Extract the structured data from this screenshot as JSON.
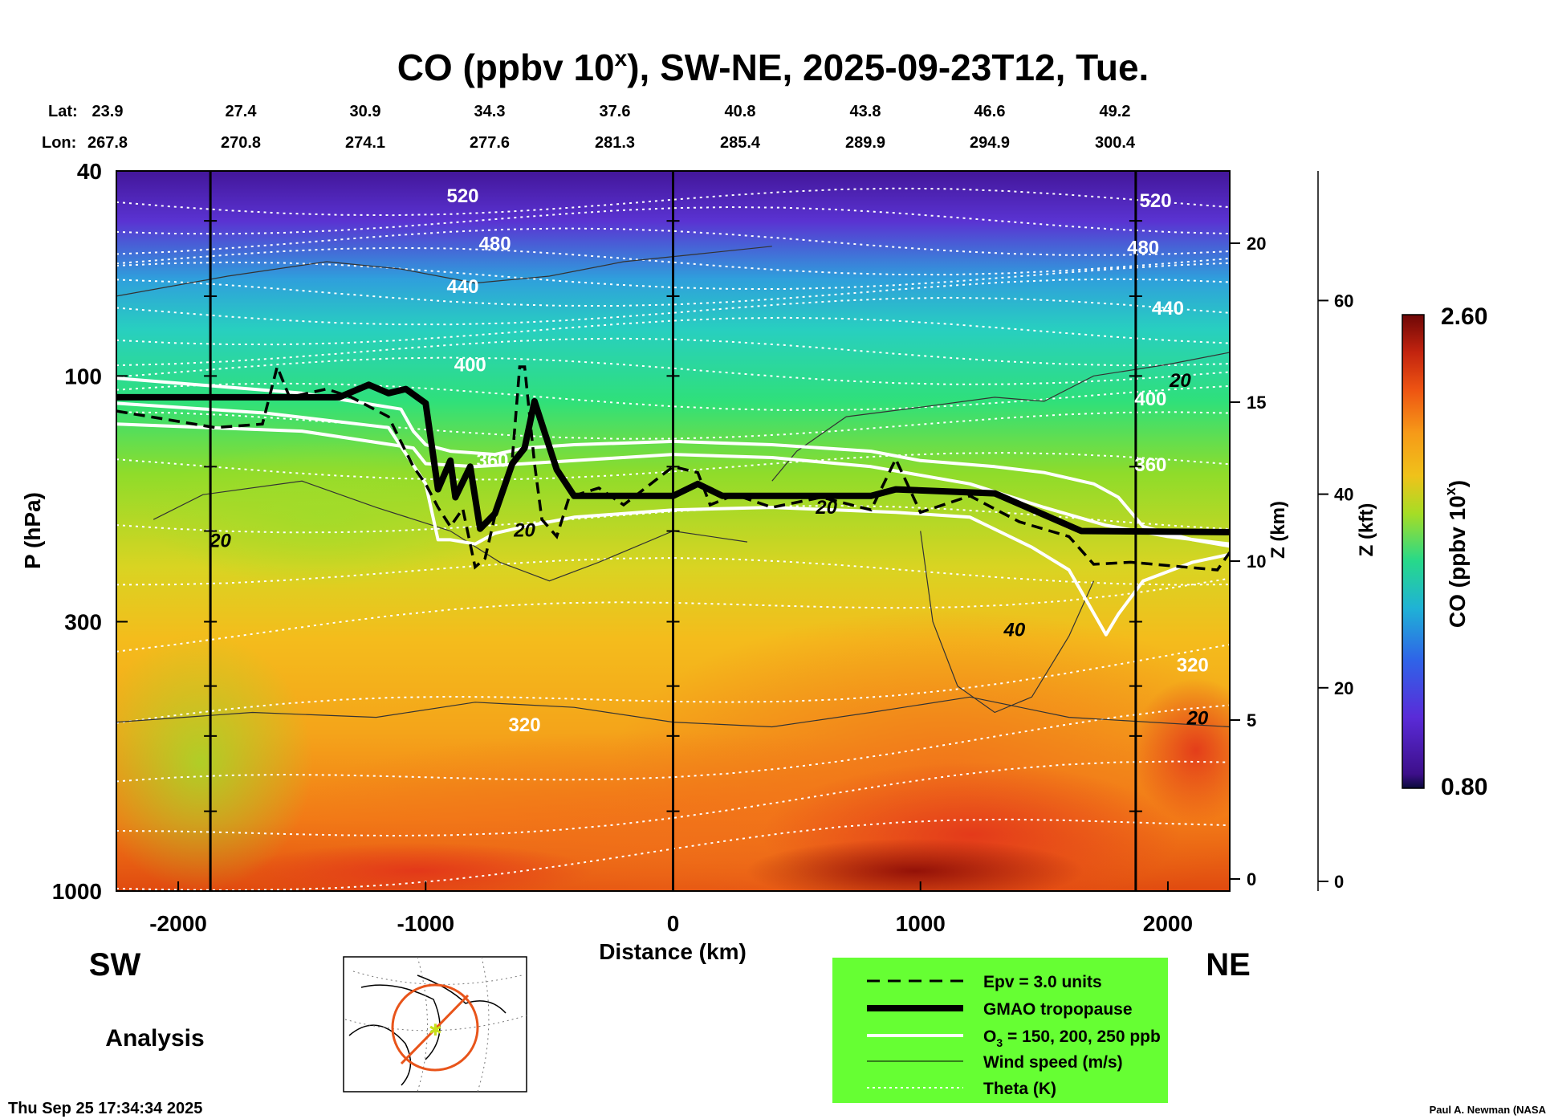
{
  "chart_data": {
    "type": "heatmap",
    "title": "CO (ppbv 10",
    "title_sup": "x",
    "title_rest": "), SW-NE, 2025-09-23T12, Tue.",
    "xlabel": "Distance (km)",
    "ylabel": "P (hPa)",
    "y2label": "Z (km)",
    "y3label": "Z (kft)",
    "xlim": [
      -2250,
      2250
    ],
    "ylim_hpa": [
      1000,
      40
    ],
    "x_ticks": [
      -2000,
      -1000,
      0,
      1000,
      2000
    ],
    "x_tick_labels": [
      "-2000",
      "-1000",
      "0",
      "1000",
      "2000"
    ],
    "p_ticks": [
      40,
      100,
      300,
      1000
    ],
    "p_tick_labels": [
      "40",
      "100",
      "300",
      "1000"
    ],
    "z_km_ticks": [
      0,
      5,
      10,
      15,
      20
    ],
    "z_km_labels": [
      "0",
      "5",
      "10",
      "15",
      "20"
    ],
    "z_kft_ticks": [
      0,
      20,
      40,
      60
    ],
    "z_kft_labels": [
      "0",
      "20",
      "40",
      "60"
    ],
    "lat_label": "Lat:",
    "lon_label": "Lon:",
    "lat_values": [
      "23.9",
      "27.4",
      "30.9",
      "34.3",
      "37.6",
      "40.8",
      "43.8",
      "46.6",
      "49.2"
    ],
    "lon_values": [
      "267.8",
      "270.8",
      "274.1",
      "277.6",
      "281.3",
      "285.4",
      "289.9",
      "294.9",
      "300.4"
    ],
    "station_lines_km": [
      -1870,
      0,
      1870
    ],
    "theta_labels": [
      {
        "text": "520",
        "x_km": -850,
        "p": 46
      },
      {
        "text": "480",
        "x_km": -720,
        "p": 57
      },
      {
        "text": "440",
        "x_km": -850,
        "p": 69
      },
      {
        "text": "400",
        "x_km": -820,
        "p": 98
      },
      {
        "text": "360",
        "x_km": -730,
        "p": 150
      },
      {
        "text": "320",
        "x_km": -600,
        "p": 490
      },
      {
        "text": "520",
        "x_km": 1950,
        "p": 47
      },
      {
        "text": "480",
        "x_km": 1900,
        "p": 58
      },
      {
        "text": "440",
        "x_km": 2000,
        "p": 76
      },
      {
        "text": "400",
        "x_km": 1930,
        "p": 114
      },
      {
        "text": "360",
        "x_km": 1930,
        "p": 153
      },
      {
        "text": "320",
        "x_km": 2100,
        "p": 375
      }
    ],
    "wind_labels": [
      {
        "text": "20",
        "x_km": -1830,
        "p": 215
      },
      {
        "text": "20",
        "x_km": -600,
        "p": 205
      },
      {
        "text": "20",
        "x_km": 620,
        "p": 185
      },
      {
        "text": "40",
        "x_km": 1380,
        "p": 320
      },
      {
        "text": "20",
        "x_km": 2050,
        "p": 105
      },
      {
        "text": "20",
        "x_km": 2120,
        "p": 475
      }
    ],
    "tropopause_gmao": {
      "x_km": [
        -2250,
        -1350,
        -1230,
        -1150,
        -1080,
        -1000,
        -950,
        -900,
        -880,
        -820,
        -780,
        -720,
        -650,
        -600,
        -560,
        -470,
        -400,
        -200,
        0,
        100,
        200,
        400,
        800,
        900,
        1300,
        1500,
        1650,
        2250
      ],
      "p_hpa": [
        110,
        110,
        104,
        108,
        106,
        113,
        166,
        146,
        172,
        150,
        198,
        185,
        148,
        138,
        112,
        152,
        171,
        171,
        171,
        162,
        171,
        171,
        171,
        166,
        169,
        186,
        200,
        201
      ]
    },
    "epv_3": {
      "x_km": [
        -2250,
        -1850,
        -1660,
        -1600,
        -1550,
        -1400,
        -1300,
        -1150,
        -1050,
        -1000,
        -950,
        -900,
        -850,
        -800,
        -760,
        -700,
        -650,
        -620,
        -600,
        -560,
        -530,
        -470,
        -420,
        -300,
        -200,
        0,
        100,
        150,
        250,
        400,
        600,
        800,
        900,
        1000,
        1200,
        1400,
        1600,
        1700,
        1850,
        2200,
        2250
      ],
      "p_hpa": [
        117,
        126,
        124,
        96,
        110,
        106,
        110,
        120,
        150,
        162,
        180,
        196,
        181,
        235,
        226,
        170,
        145,
        96,
        96,
        148,
        190,
        205,
        172,
        165,
        178,
        150,
        154,
        178,
        170,
        180,
        172,
        182,
        145,
        184,
        171,
        192,
        205,
        232,
        230,
        238,
        220
      ]
    },
    "o3_contours": [
      {
        "name": "O3 150",
        "x_km": [
          -2250,
          -1650,
          -1150,
          -1000,
          -950,
          -900,
          -800,
          -720,
          -600,
          -400,
          0,
          400,
          900,
          1200,
          1450,
          1600,
          1750,
          1800,
          1900,
          2100,
          2250
        ],
        "p_hpa": [
          113,
          118,
          126,
          162,
          208,
          208,
          212,
          202,
          196,
          188,
          182,
          180,
          184,
          188,
          215,
          238,
          318,
          290,
          250,
          230,
          222
        ]
      },
      {
        "name": "O3 200",
        "x_km": [
          -2250,
          -1500,
          -1100,
          -1050,
          -1000,
          -900,
          -720,
          -600,
          -400,
          0,
          400,
          800,
          1000,
          1300,
          1500,
          1700,
          1800,
          1900,
          2100,
          2250
        ],
        "p_hpa": [
          101,
          108,
          116,
          128,
          136,
          140,
          142,
          138,
          136,
          134,
          136,
          140,
          146,
          150,
          154,
          162,
          172,
          196,
          208,
          214
        ]
      },
      {
        "name": "O3 250",
        "x_km": [
          -2250,
          -1500,
          -1050,
          -1000,
          -800,
          -600,
          -400,
          0,
          400,
          800,
          1200,
          1500,
          1750,
          2000,
          2250
        ],
        "p_hpa": [
          124,
          128,
          138,
          148,
          150,
          148,
          146,
          142,
          144,
          150,
          162,
          180,
          195,
          205,
          212
        ]
      }
    ],
    "colorbar": {
      "label": "CO (ppbv 10",
      "label_sup": "x",
      "label_rest": ")",
      "min": 0.8,
      "max": 2.6,
      "min_label": "0.80",
      "max_label": "2.60"
    },
    "legend": [
      {
        "label": "Epv = 3.0 units",
        "style": "dashed-black"
      },
      {
        "label": "GMAO tropopause",
        "style": "thick-black"
      },
      {
        "label": "O",
        "sub": "3",
        "label_rest": " = 150, 200, 250 ppb",
        "style": "white"
      },
      {
        "label": "Wind speed (m/s)",
        "style": "thin-black"
      },
      {
        "label": "Theta (K)",
        "style": "dotted-white"
      }
    ],
    "legend_bg": "#66ff33",
    "sw_label": "SW",
    "ne_label": "NE",
    "analysis_label": "Analysis",
    "timestamp": "Thu Sep 25 17:34:34 2025",
    "credit": "Paul A. Newman (NASA"
  }
}
